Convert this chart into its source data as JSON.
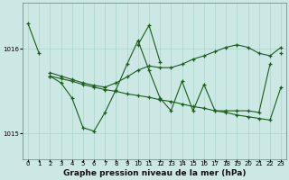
{
  "title": "Graphe pression niveau de la mer (hPa)",
  "background_color": "#cce8e4",
  "grid_color": "#aad4cc",
  "line_color": "#1a5c1a",
  "x": [
    0,
    1,
    2,
    3,
    4,
    5,
    6,
    7,
    8,
    9,
    10,
    11,
    12,
    13,
    14,
    15,
    16,
    17,
    18,
    19,
    20,
    21,
    22,
    23
  ],
  "lineA": [
    1016.3,
    1015.95,
    null,
    null,
    null,
    null,
    null,
    null,
    null,
    null,
    1016.05,
    1016.28,
    1015.85,
    null,
    null,
    null,
    null,
    null,
    null,
    null,
    null,
    null,
    null,
    1015.95
  ],
  "lineB": [
    null,
    null,
    1015.72,
    1015.68,
    1015.64,
    1015.6,
    1015.57,
    1015.55,
    1015.6,
    1015.67,
    1015.75,
    1015.8,
    1015.78,
    1015.78,
    1015.82,
    1015.88,
    1015.92,
    1015.97,
    1016.02,
    1016.05,
    1016.02,
    1015.95,
    1015.92,
    1016.02
  ],
  "lineC": [
    null,
    null,
    1015.68,
    1015.65,
    1015.62,
    1015.58,
    1015.55,
    1015.52,
    1015.5,
    1015.47,
    1015.45,
    1015.43,
    1015.4,
    1015.38,
    1015.35,
    1015.32,
    1015.3,
    1015.27,
    1015.25,
    1015.22,
    1015.2,
    1015.18,
    1015.16,
    1015.55
  ],
  "lineD": [
    null,
    null,
    1015.68,
    1015.6,
    1015.42,
    1015.07,
    1015.03,
    1015.25,
    1015.52,
    1015.82,
    1016.1,
    1015.75,
    1015.42,
    1015.27,
    1015.62,
    1015.27,
    1015.58,
    1015.27,
    1015.27,
    1015.27,
    1015.27,
    1015.25,
    1015.82,
    null
  ],
  "ylim": [
    1014.7,
    1016.55
  ],
  "yticks": [
    1015.0,
    1016.0
  ],
  "title_fontsize": 6.5,
  "tick_fontsize": 5.0
}
